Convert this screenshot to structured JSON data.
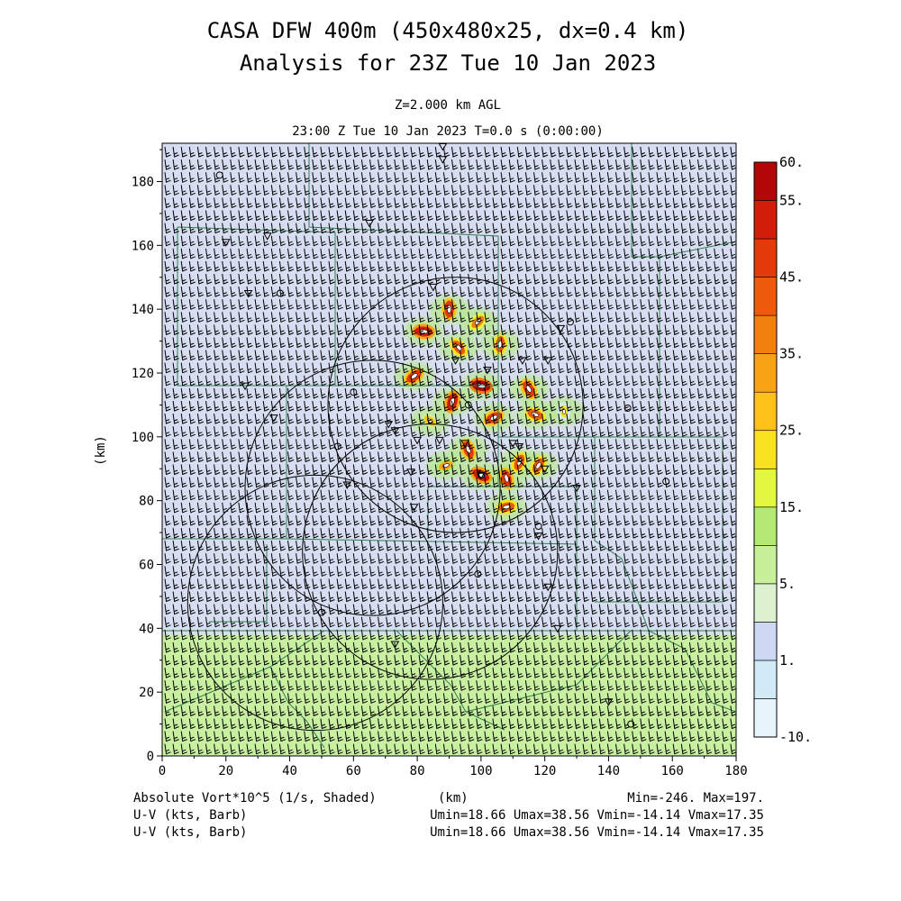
{
  "title_line1": "CASA DFW 400m (450x480x25, dx=0.4 km)",
  "title_line2": "Analysis for 23Z Tue 10 Jan 2023",
  "subtitle_line1": "Z=2.000 km AGL",
  "subtitle_line2": "23:00 Z Tue 10 Jan 2023    T=0.0 s (0:00:00)",
  "footer": {
    "field_label": "Absolute Vort*10^5 (1/s, Shaded)",
    "xunit": "(km)",
    "minmax": "Min=-246. Max=197.",
    "wind_label_1": "U-V (kts, Barb)",
    "wind_label_2": "U-V (kts, Barb)",
    "wind_stats_1": "Umin=18.66 Umax=38.56 Vmin=-14.14 Vmax=17.35",
    "wind_stats_2": "Umin=18.66 Umax=38.56 Vmin=-14.14 Vmax=17.35"
  },
  "colors": {
    "background_field": "#d8def2",
    "low_field": "#c8f0a0",
    "contour": "#000000",
    "county_lines": "#2e7d4f",
    "barb": "#000000"
  },
  "chart_data": {
    "type": "heatmap",
    "xlabel": "(km)",
    "ylabel": "(km)",
    "xlim": [
      0,
      180
    ],
    "ylim": [
      0,
      192
    ],
    "xticks": [
      0,
      20,
      40,
      60,
      80,
      100,
      120,
      140,
      160,
      180
    ],
    "yticks": [
      0,
      20,
      40,
      60,
      80,
      100,
      120,
      140,
      160,
      180
    ],
    "colorbar": {
      "labels": [
        "60.",
        "55.",
        "45.",
        "35.",
        "25.",
        "15.",
        "5.",
        "1.",
        "-10."
      ],
      "levels": [
        -10,
        -5,
        1,
        3,
        5,
        10,
        15,
        20,
        25,
        30,
        35,
        40,
        45,
        50,
        55,
        60
      ],
      "colors": [
        "#e8f4fb",
        "#d2e9f6",
        "#cfd8f3",
        "#ddf1cf",
        "#c8ef9a",
        "#b4ea73",
        "#e2f73d",
        "#f8e21f",
        "#fcc21a",
        "#f7a314",
        "#f2800f",
        "#ee5a0c",
        "#e43a0a",
        "#d11d09",
        "#b20706"
      ]
    },
    "low_field_ymax_km": 38,
    "features": [
      {
        "x": 90,
        "y": 140,
        "value": 45
      },
      {
        "x": 99,
        "y": 136,
        "value": 35
      },
      {
        "x": 82,
        "y": 133,
        "value": 50
      },
      {
        "x": 93,
        "y": 128,
        "value": 40
      },
      {
        "x": 106,
        "y": 129,
        "value": 40
      },
      {
        "x": 79,
        "y": 119,
        "value": 45
      },
      {
        "x": 100,
        "y": 116,
        "value": 55
      },
      {
        "x": 115,
        "y": 115,
        "value": 45
      },
      {
        "x": 91,
        "y": 111,
        "value": 50
      },
      {
        "x": 104,
        "y": 106,
        "value": 45
      },
      {
        "x": 117,
        "y": 107,
        "value": 40
      },
      {
        "x": 96,
        "y": 96,
        "value": 45
      },
      {
        "x": 112,
        "y": 92,
        "value": 40
      },
      {
        "x": 89,
        "y": 91,
        "value": 30
      },
      {
        "x": 100,
        "y": 88,
        "value": 50
      },
      {
        "x": 108,
        "y": 87,
        "value": 45
      },
      {
        "x": 118,
        "y": 91,
        "value": 40
      },
      {
        "x": 108,
        "y": 78,
        "value": 40
      },
      {
        "x": 84,
        "y": 105,
        "value": 25
      },
      {
        "x": 126,
        "y": 108,
        "value": 20
      }
    ],
    "radar_rings": [
      {
        "cx": 92,
        "cy": 110,
        "r": 40
      },
      {
        "cx": 66,
        "cy": 84,
        "r": 40
      },
      {
        "cx": 48,
        "cy": 48,
        "r": 40
      },
      {
        "cx": 84,
        "cy": 64,
        "r": 40
      }
    ],
    "wind_barb_u_range": [
      18.66,
      38.56
    ],
    "wind_barb_v_range": [
      -14.14,
      17.35
    ]
  }
}
